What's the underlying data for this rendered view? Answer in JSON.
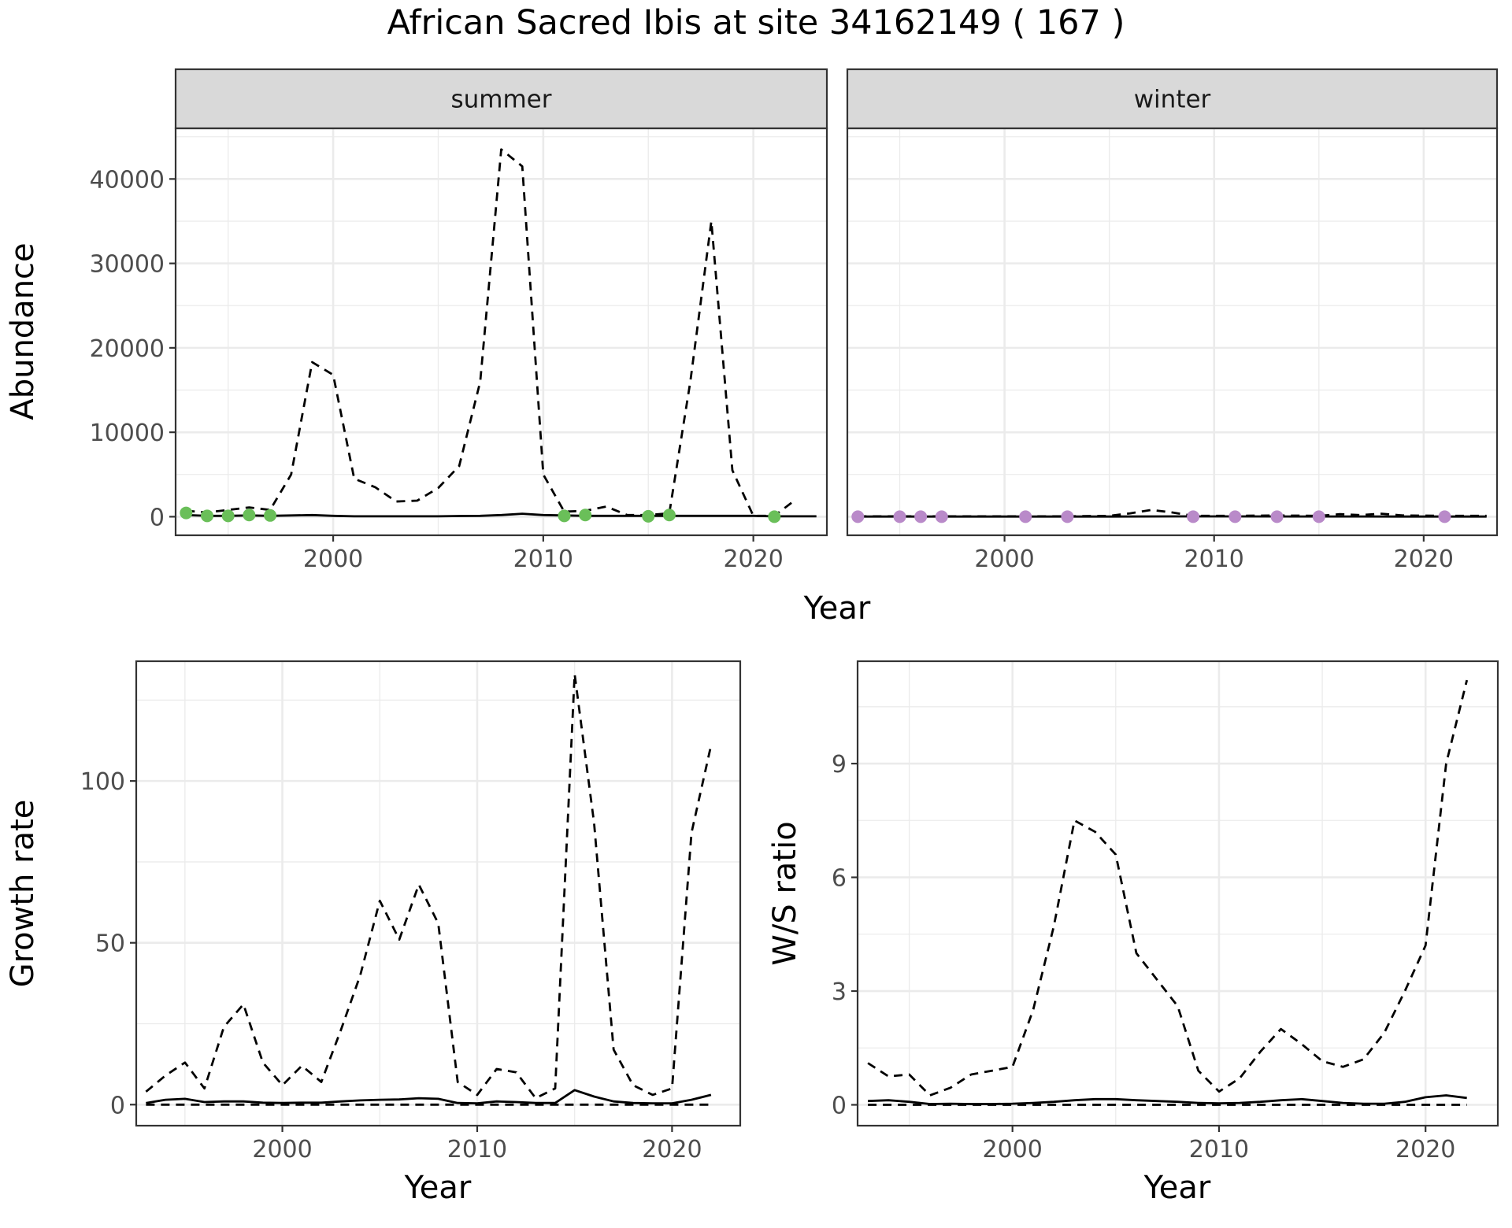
{
  "title": "African Sacred Ibis at site 34162149 ( 167 )",
  "colors": {
    "summer_points": "#6abf59",
    "winter_points": "#b98ac9",
    "line": "#000000",
    "strip_fill": "#d9d9d9",
    "grid": "#ebebeb"
  },
  "chart_data": [
    {
      "type": "line",
      "panel": "summer",
      "strip": "summer",
      "xlabel": "Year",
      "ylabel": "Abundance",
      "xlim": [
        1992.5,
        2023.5
      ],
      "ylim": [
        -2200,
        46000
      ],
      "x_ticks": [
        2000,
        2010,
        2020
      ],
      "y_ticks": [
        0,
        10000,
        20000,
        30000,
        40000
      ],
      "y_tick_labels": [
        "0",
        "10000",
        "20000",
        "30000",
        "40000"
      ],
      "grid": true,
      "series": [
        {
          "style": "dashed",
          "x": [
            1993,
            1994,
            1995,
            1996,
            1997,
            1998,
            1999,
            2000,
            2001,
            2002,
            2003,
            2004,
            2005,
            2006,
            2007,
            2008,
            2009,
            2010,
            2011,
            2012,
            2013,
            2014,
            2015,
            2016,
            2017,
            2018,
            2019,
            2020,
            2021,
            2022
          ],
          "values": [
            700,
            500,
            800,
            1100,
            800,
            5000,
            18300,
            16800,
            4500,
            3500,
            1800,
            1900,
            3400,
            6000,
            16000,
            43500,
            41500,
            5000,
            600,
            700,
            1200,
            200,
            200,
            400,
            16000,
            35000,
            5500,
            100,
            100,
            2000
          ]
        },
        {
          "style": "solid",
          "x": [
            1993,
            1994,
            1995,
            1996,
            1997,
            1998,
            1999,
            2000,
            2001,
            2002,
            2003,
            2004,
            2005,
            2006,
            2007,
            2008,
            2009,
            2010,
            2011,
            2012,
            2013,
            2014,
            2015,
            2016,
            2017,
            2018,
            2019,
            2020,
            2021,
            2022,
            2023
          ],
          "values": [
            200,
            100,
            100,
            150,
            100,
            150,
            200,
            100,
            50,
            50,
            50,
            50,
            50,
            80,
            100,
            200,
            350,
            200,
            150,
            100,
            100,
            100,
            100,
            100,
            100,
            100,
            100,
            100,
            50,
            50,
            50
          ]
        },
        {
          "style": "points",
          "color_key": "summer_points",
          "x": [
            1993,
            1994,
            1995,
            1996,
            1997,
            2011,
            2012,
            2015,
            2016,
            2021
          ],
          "values": [
            450,
            100,
            100,
            200,
            150,
            100,
            200,
            50,
            200,
            0
          ]
        }
      ]
    },
    {
      "type": "line",
      "panel": "winter",
      "strip": "winter",
      "xlabel": "Year",
      "ylabel": "",
      "xlim": [
        1992.5,
        2023.5
      ],
      "ylim": [
        -2200,
        46000
      ],
      "x_ticks": [
        2000,
        2010,
        2020
      ],
      "grid": true,
      "series": [
        {
          "style": "dashed",
          "x": [
            1993,
            1995,
            1997,
            1999,
            2001,
            2003,
            2005,
            2006,
            2007,
            2008,
            2009,
            2011,
            2013,
            2015,
            2016,
            2017,
            2018,
            2019,
            2021,
            2023
          ],
          "values": [
            50,
            50,
            50,
            50,
            50,
            50,
            100,
            400,
            800,
            500,
            100,
            100,
            150,
            100,
            300,
            200,
            350,
            150,
            100,
            100
          ]
        },
        {
          "style": "solid",
          "x": [
            1993,
            1996,
            1999,
            2002,
            2005,
            2008,
            2011,
            2014,
            2017,
            2020,
            2023
          ],
          "values": [
            20,
            20,
            20,
            20,
            20,
            40,
            40,
            30,
            30,
            20,
            20
          ]
        },
        {
          "style": "points",
          "color_key": "winter_points",
          "x": [
            1993,
            1995,
            1996,
            1997,
            2001,
            2003,
            2009,
            2011,
            2013,
            2015,
            2021
          ],
          "values": [
            0,
            0,
            0,
            0,
            0,
            0,
            0,
            0,
            0,
            0,
            0
          ]
        }
      ]
    },
    {
      "type": "line",
      "panel": "growth",
      "xlabel": "Year",
      "ylabel": "Growth rate",
      "xlim": [
        1992.5,
        2023.5
      ],
      "ylim": [
        -6.5,
        137
      ],
      "x_ticks": [
        2000,
        2010,
        2020
      ],
      "y_ticks": [
        0,
        50,
        100
      ],
      "y_tick_labels": [
        "0",
        "50",
        "100"
      ],
      "grid": true,
      "series": [
        {
          "style": "dashed",
          "x": [
            1993,
            1994,
            1995,
            1996,
            1997,
            1998,
            1999,
            2000,
            2001,
            2002,
            2003,
            2004,
            2005,
            2006,
            2007,
            2008,
            2009,
            2010,
            2011,
            2012,
            2013,
            2014,
            2015,
            2016,
            2017,
            2018,
            2019,
            2020,
            2021,
            2022
          ],
          "values": [
            4,
            9,
            13,
            5,
            24,
            31,
            13,
            6,
            12,
            7,
            23,
            40,
            63,
            51,
            68,
            56,
            7,
            3,
            11,
            10,
            2,
            5,
            133,
            87,
            17,
            6,
            3,
            5,
            84,
            111
          ]
        },
        {
          "style": "solid",
          "x": [
            1993,
            1994,
            1995,
            1996,
            1997,
            1998,
            1999,
            2000,
            2001,
            2002,
            2003,
            2004,
            2005,
            2006,
            2007,
            2008,
            2009,
            2010,
            2011,
            2012,
            2013,
            2014,
            2015,
            2016,
            2017,
            2018,
            2019,
            2020,
            2021,
            2022
          ],
          "values": [
            0.5,
            1.5,
            1.8,
            0.8,
            1.0,
            1.0,
            0.6,
            0.5,
            0.6,
            0.6,
            1.0,
            1.3,
            1.5,
            1.6,
            2.0,
            1.8,
            0.5,
            0.4,
            1.0,
            0.8,
            0.5,
            0.5,
            4.5,
            2.5,
            1.0,
            0.5,
            0.4,
            0.4,
            1.5,
            3.0
          ]
        },
        {
          "style": "dashed",
          "x": [
            1993,
            2022
          ],
          "values": [
            0,
            0
          ]
        }
      ]
    },
    {
      "type": "line",
      "panel": "ratio",
      "xlabel": "Year",
      "ylabel": "W/S ratio",
      "xlim": [
        1992.5,
        2023.5
      ],
      "ylim": [
        -0.55,
        11.7
      ],
      "x_ticks": [
        2000,
        2010,
        2020
      ],
      "y_ticks": [
        0,
        3,
        6,
        9
      ],
      "y_tick_labels": [
        "0",
        "3",
        "6",
        "9"
      ],
      "grid": true,
      "series": [
        {
          "style": "dashed",
          "x": [
            1993,
            1994,
            1995,
            1996,
            1997,
            1998,
            1999,
            2000,
            2001,
            2002,
            2003,
            2004,
            2005,
            2006,
            2007,
            2008,
            2009,
            2010,
            2011,
            2012,
            2013,
            2014,
            2015,
            2016,
            2017,
            2018,
            2019,
            2020,
            2021,
            2022
          ],
          "values": [
            1.1,
            0.75,
            0.8,
            0.25,
            0.45,
            0.8,
            0.9,
            1.0,
            2.5,
            4.7,
            7.5,
            7.2,
            6.6,
            4.0,
            3.3,
            2.6,
            0.9,
            0.35,
            0.7,
            1.4,
            2.0,
            1.6,
            1.15,
            1.0,
            1.2,
            1.9,
            3.0,
            4.2,
            9.0,
            11.2
          ]
        },
        {
          "style": "solid",
          "x": [
            1993,
            1994,
            1995,
            1996,
            1997,
            1998,
            1999,
            2000,
            2001,
            2002,
            2003,
            2004,
            2005,
            2006,
            2007,
            2008,
            2009,
            2010,
            2011,
            2012,
            2013,
            2014,
            2015,
            2016,
            2017,
            2018,
            2019,
            2020,
            2021,
            2022
          ],
          "values": [
            0.1,
            0.12,
            0.08,
            0.02,
            0.03,
            0.02,
            0.02,
            0.03,
            0.05,
            0.08,
            0.12,
            0.15,
            0.15,
            0.12,
            0.1,
            0.08,
            0.05,
            0.04,
            0.05,
            0.08,
            0.12,
            0.15,
            0.1,
            0.05,
            0.03,
            0.03,
            0.08,
            0.2,
            0.25,
            0.18
          ]
        },
        {
          "style": "dashed",
          "x": [
            1993,
            2022
          ],
          "values": [
            0,
            0
          ]
        }
      ]
    }
  ]
}
